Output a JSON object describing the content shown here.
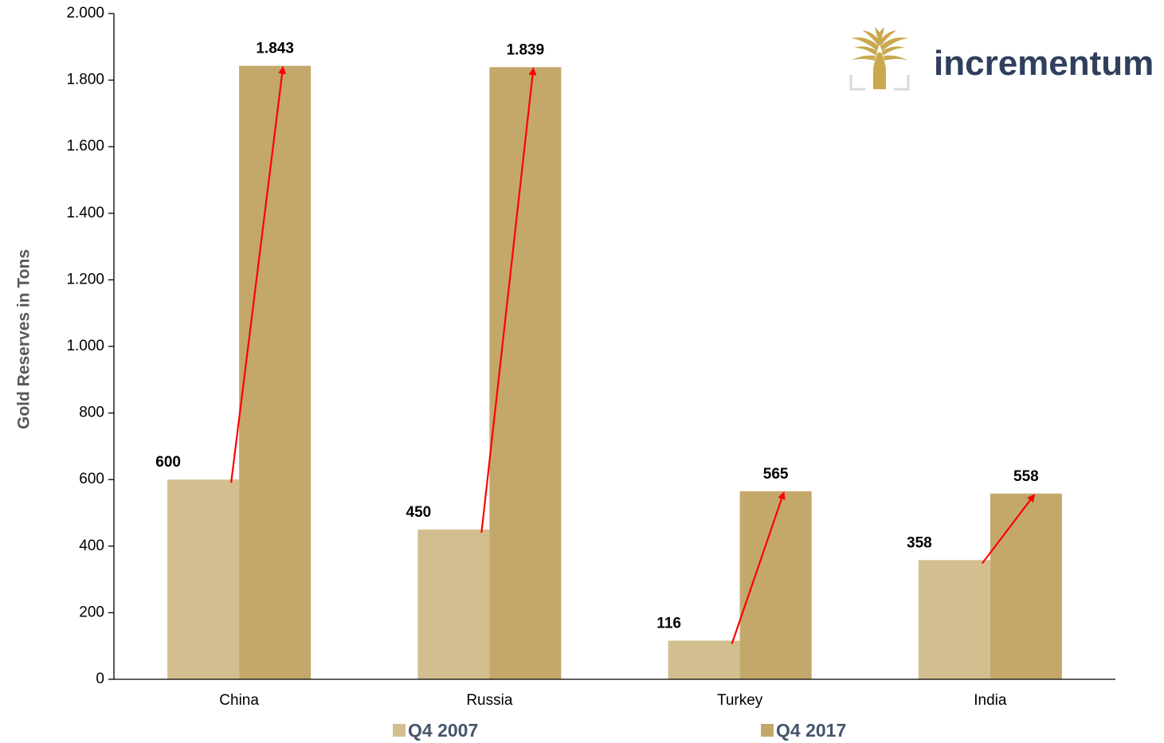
{
  "chart_data": {
    "type": "bar",
    "categories": [
      "China",
      "Russia",
      "Turkey",
      "India"
    ],
    "series": [
      {
        "name": "Q4 2007",
        "values": [
          600,
          450,
          116,
          358
        ],
        "labels": [
          "600",
          "450",
          "116",
          "358"
        ],
        "color": "#d3be8f"
      },
      {
        "name": "Q4 2017",
        "values": [
          1843,
          1839,
          565,
          558
        ],
        "labels": [
          "1.843",
          "1.839",
          "565",
          "558"
        ],
        "color": "#c4a86b"
      }
    ],
    "ylabel": "Gold Reserves in Tons",
    "ylim": [
      0,
      2000
    ],
    "yticks": [
      0,
      200,
      400,
      600,
      800,
      1000,
      1200,
      1400,
      1600,
      1800,
      2000
    ],
    "ytick_labels": [
      "0",
      "200",
      "400",
      "600",
      "800",
      "1.000",
      "1.200",
      "1.400",
      "1.600",
      "1.800",
      "2.000"
    ],
    "legend_position": "bottom",
    "grid": false,
    "annotations": "red arrows from Q4 2007 bar to Q4 2017 bar for each country",
    "arrow_color": "#ff0000"
  },
  "brand": {
    "name": "incrementum",
    "logo_icon": "tree-logo-icon",
    "logo_color": "#c9a84e",
    "text_color": "#2f3f5c"
  }
}
